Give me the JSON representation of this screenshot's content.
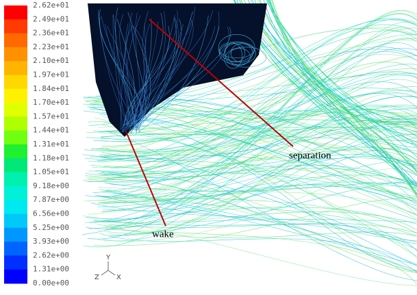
{
  "colorbar": {
    "labels": [
      "2.62e+01",
      "2.49e+01",
      "2.36e+01",
      "2.23e+01",
      "2.10e+01",
      "1.97e+01",
      "1.84e+01",
      "1.70e+01",
      "1.57e+01",
      "1.44e+01",
      "1.31e+01",
      "1.18e+01",
      "1.05e+01",
      "9.18e+00",
      "7.87e+00",
      "6.56e+00",
      "5.25e+00",
      "3.93e+00",
      "2.62e+00",
      "1.31e+00",
      "0.00e+00"
    ],
    "colors": [
      "#ff0000",
      "#ff3a00",
      "#ff6a00",
      "#ff9000",
      "#ffb400",
      "#ffd800",
      "#fff200",
      "#e0ff00",
      "#b0ff00",
      "#70ff10",
      "#20f030",
      "#00e878",
      "#00f0b0",
      "#00f0d8",
      "#00e8f0",
      "#00c8f8",
      "#0098ff",
      "#0064ff",
      "#0030ff",
      "#0000ff"
    ]
  },
  "annotations": [
    {
      "text": "separation"
    },
    {
      "text": "wake"
    }
  ],
  "triad": {
    "y": "Y",
    "z": "Z",
    "x": "X"
  }
}
